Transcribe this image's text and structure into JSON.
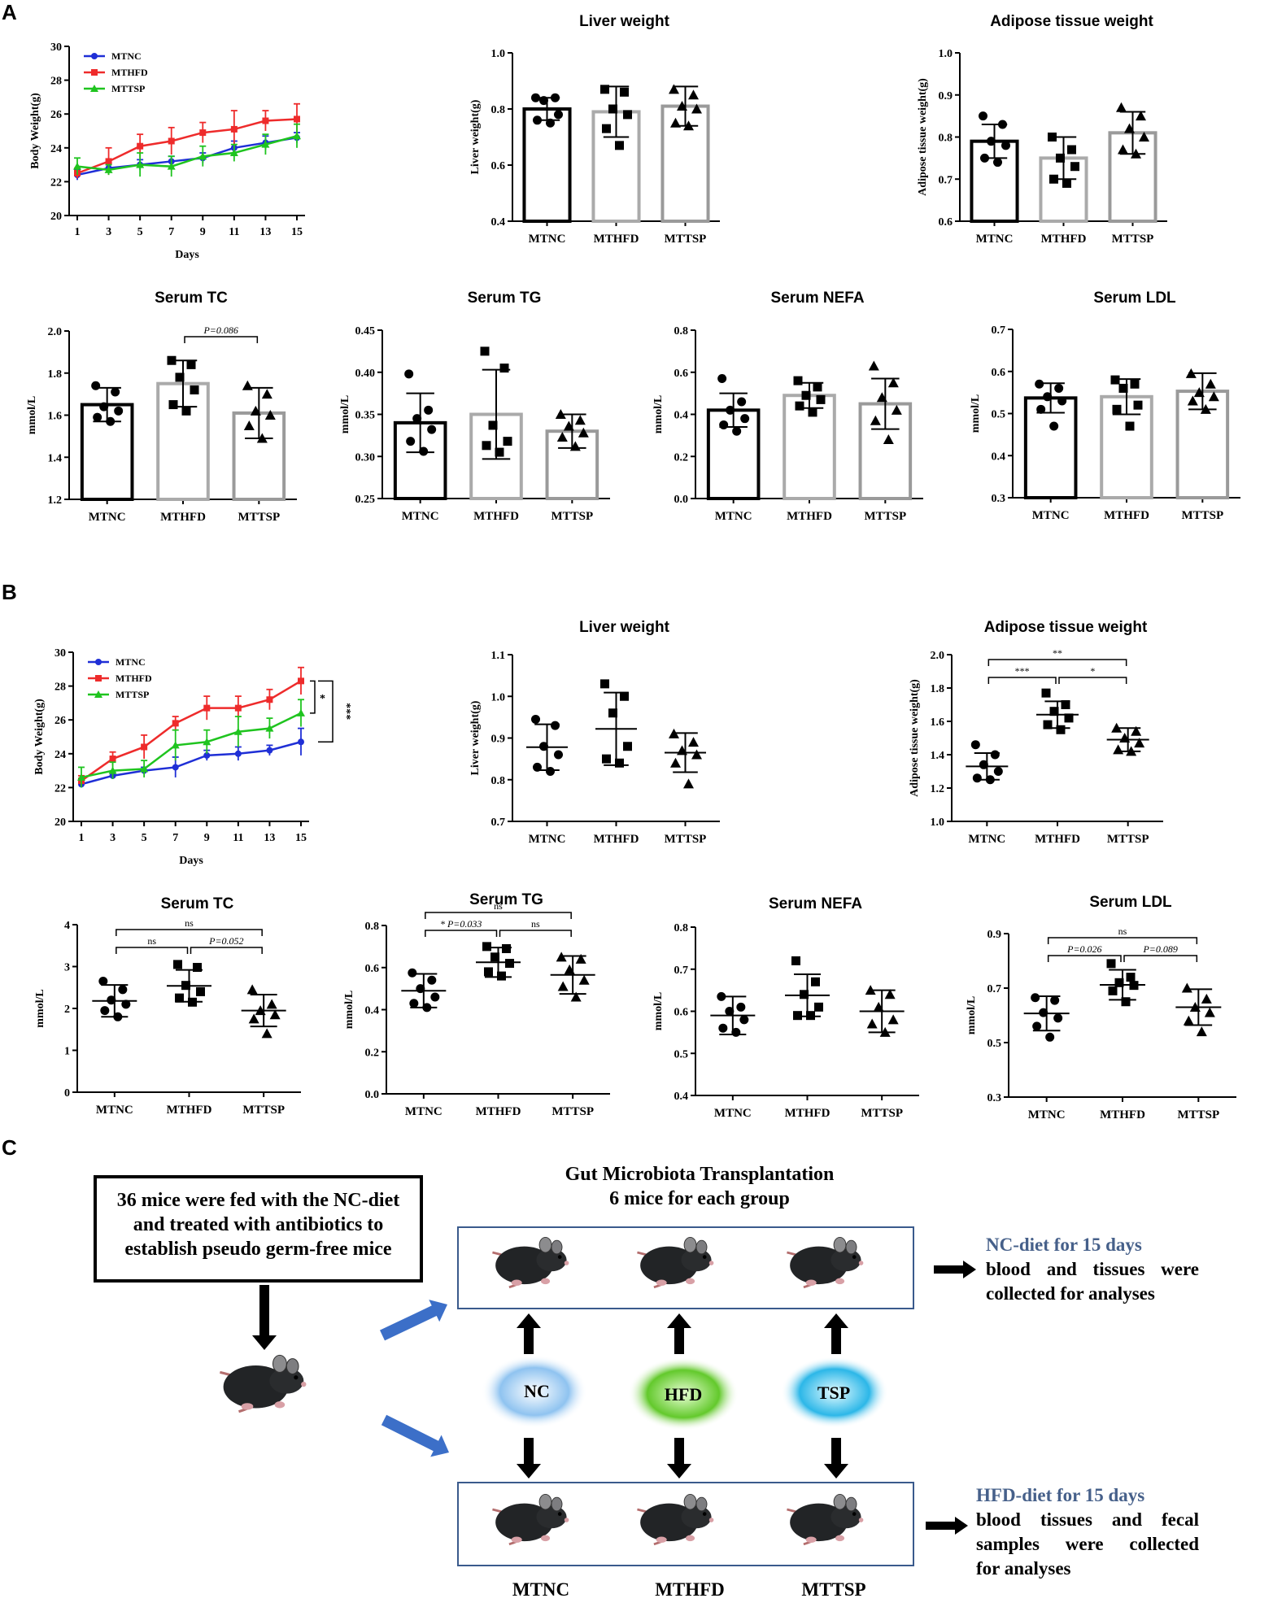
{
  "panels": {
    "a": "A",
    "b": "B",
    "c": "C"
  },
  "groups": [
    "MTNC",
    "MTHFD",
    "MTTSP"
  ],
  "colors": {
    "MTNC": "#1f2fd6",
    "MTHFD": "#ee2b2b",
    "MTTSP": "#1fc41f",
    "box_border": "#3a5a8c",
    "note_title": "#46608a",
    "arrow_blue": "#3c6fc8"
  },
  "chart_data": [
    {
      "id": "A_bw",
      "type": "line",
      "title": "",
      "xlabel": "Days",
      "ylabel": "Body Weight(g)",
      "x": [
        1,
        3,
        5,
        7,
        9,
        11,
        13,
        15
      ],
      "ylim": [
        20,
        30
      ],
      "yticks": [
        20,
        22,
        24,
        26,
        28,
        30
      ],
      "series": [
        {
          "name": "MTNC",
          "values": [
            22.4,
            22.8,
            23.0,
            23.2,
            23.4,
            24.0,
            24.3,
            24.6
          ],
          "err": [
            0.3,
            0.3,
            0.3,
            0.3,
            0.3,
            0.4,
            0.4,
            0.3
          ],
          "marker": "circle"
        },
        {
          "name": "MTHFD",
          "values": [
            22.5,
            23.2,
            24.1,
            24.4,
            24.9,
            25.1,
            25.6,
            25.7
          ],
          "err": [
            0.3,
            0.8,
            0.7,
            0.8,
            0.6,
            1.1,
            0.6,
            0.9
          ],
          "marker": "square"
        },
        {
          "name": "MTTSP",
          "values": [
            22.9,
            22.7,
            23.0,
            22.9,
            23.5,
            23.7,
            24.2,
            24.7
          ],
          "err": [
            0.5,
            0.3,
            0.7,
            0.6,
            0.6,
            0.5,
            0.6,
            0.7
          ],
          "marker": "triangle"
        }
      ]
    },
    {
      "id": "A_liver",
      "type": "bar",
      "title": "Liver weight",
      "ylabel": "Liver weight(g)",
      "categories": [
        "MTNC",
        "MTHFD",
        "MTTSP"
      ],
      "ylim": [
        0.4,
        1.0
      ],
      "yticks": [
        "0.4",
        "0.6",
        "0.8",
        "1.0"
      ],
      "means": [
        0.8,
        0.79,
        0.81
      ],
      "sd": [
        0.04,
        0.09,
        0.07
      ],
      "points": [
        [
          0.84,
          0.84,
          0.83,
          0.78,
          0.76,
          0.75
        ],
        [
          0.87,
          0.86,
          0.8,
          0.78,
          0.73,
          0.67
        ],
        [
          0.87,
          0.85,
          0.81,
          0.8,
          0.75,
          0.74
        ]
      ]
    },
    {
      "id": "A_adipose",
      "type": "bar",
      "title": "Adipose tissue weight",
      "ylabel": "Adipose tissue weight(g)",
      "categories": [
        "MTNC",
        "MTHFD",
        "MTTSP"
      ],
      "ylim": [
        0.6,
        1.0
      ],
      "yticks": [
        "0.6",
        "0.7",
        "0.8",
        "0.9",
        "1.0"
      ],
      "means": [
        0.79,
        0.75,
        0.81
      ],
      "sd": [
        0.04,
        0.05,
        0.05
      ],
      "points": [
        [
          0.85,
          0.83,
          0.79,
          0.78,
          0.75,
          0.74
        ],
        [
          0.8,
          0.77,
          0.75,
          0.73,
          0.7,
          0.69
        ],
        [
          0.87,
          0.85,
          0.82,
          0.8,
          0.77,
          0.76
        ]
      ]
    },
    {
      "id": "A_tc",
      "type": "bar",
      "title": "Serum TC",
      "ylabel": "mmol/L",
      "categories": [
        "MTNC",
        "MTHFD",
        "MTTSP"
      ],
      "ylim": [
        1.2,
        2.0
      ],
      "yticks": [
        "1.2",
        "1.4",
        "1.6",
        "1.8",
        "2.0"
      ],
      "means": [
        1.65,
        1.75,
        1.61
      ],
      "sd": [
        0.08,
        0.11,
        0.12
      ],
      "points": [
        [
          1.74,
          1.71,
          1.64,
          1.62,
          1.59,
          1.57
        ],
        [
          1.86,
          1.84,
          1.78,
          1.72,
          1.65,
          1.62
        ],
        [
          1.74,
          1.7,
          1.62,
          1.6,
          1.55,
          1.49
        ]
      ],
      "annotations": [
        {
          "from": 1,
          "to": 2,
          "text": "P=0.086"
        }
      ]
    },
    {
      "id": "A_tg",
      "type": "bar",
      "title": "Serum TG",
      "ylabel": "mmol/L",
      "categories": [
        "MTNC",
        "MTHFD",
        "MTTSP"
      ],
      "ylim": [
        0.25,
        0.45
      ],
      "yticks": [
        "0.25",
        "0.30",
        "0.35",
        "0.40",
        "0.45"
      ],
      "means": [
        0.34,
        0.35,
        0.33
      ],
      "sd": [
        0.035,
        0.053,
        0.02
      ],
      "points": [
        [
          0.398,
          0.355,
          0.345,
          0.332,
          0.318,
          0.306
        ],
        [
          0.425,
          0.405,
          0.337,
          0.318,
          0.313,
          0.305
        ],
        [
          0.35,
          0.343,
          0.336,
          0.328,
          0.323,
          0.312
        ]
      ]
    },
    {
      "id": "A_nefa",
      "type": "bar",
      "title": "Serum NEFA",
      "ylabel": "mmol/L",
      "categories": [
        "MTNC",
        "MTHFD",
        "MTTSP"
      ],
      "ylim": [
        0.0,
        0.8
      ],
      "yticks": [
        "0.0",
        "0.2",
        "0.4",
        "0.6",
        "0.8"
      ],
      "means": [
        0.42,
        0.49,
        0.45
      ],
      "sd": [
        0.08,
        0.06,
        0.12
      ],
      "points": [
        [
          0.57,
          0.46,
          0.42,
          0.38,
          0.35,
          0.32
        ],
        [
          0.56,
          0.53,
          0.49,
          0.47,
          0.44,
          0.41
        ],
        [
          0.63,
          0.55,
          0.48,
          0.42,
          0.37,
          0.28
        ]
      ]
    },
    {
      "id": "A_ldl",
      "type": "bar",
      "title": "Serum LDL",
      "ylabel": "mmol/L",
      "categories": [
        "MTNC",
        "MTHFD",
        "MTTSP"
      ],
      "ylim": [
        0.3,
        0.7
      ],
      "yticks": [
        "0.3",
        "0.4",
        "0.5",
        "0.6",
        "0.7"
      ],
      "means": [
        0.537,
        0.54,
        0.553
      ],
      "sd": [
        0.035,
        0.042,
        0.043
      ],
      "points": [
        [
          0.57,
          0.56,
          0.54,
          0.53,
          0.51,
          0.47
        ],
        [
          0.58,
          0.57,
          0.56,
          0.52,
          0.51,
          0.47
        ],
        [
          0.595,
          0.57,
          0.55,
          0.54,
          0.53,
          0.51
        ]
      ]
    },
    {
      "id": "B_bw",
      "type": "line",
      "title": "",
      "xlabel": "Days",
      "ylabel": "Body Weight(g)",
      "x": [
        1,
        3,
        5,
        7,
        9,
        11,
        13,
        15
      ],
      "ylim": [
        20,
        30
      ],
      "yticks": [
        20,
        22,
        24,
        26,
        28,
        30
      ],
      "series": [
        {
          "name": "MTNC",
          "values": [
            22.2,
            22.7,
            23.0,
            23.2,
            23.9,
            24.0,
            24.2,
            24.7
          ],
          "err": [
            0.2,
            0.2,
            0.2,
            0.6,
            0.3,
            0.4,
            0.3,
            0.8
          ],
          "marker": "circle"
        },
        {
          "name": "MTHFD",
          "values": [
            22.4,
            23.7,
            24.4,
            25.8,
            26.7,
            26.7,
            27.2,
            28.3
          ],
          "err": [
            0.3,
            0.4,
            0.7,
            0.4,
            0.7,
            0.7,
            0.6,
            0.8
          ],
          "marker": "square"
        },
        {
          "name": "MTTSP",
          "values": [
            22.6,
            23.0,
            23.1,
            24.5,
            24.7,
            25.3,
            25.5,
            26.4
          ],
          "err": [
            0.6,
            0.5,
            0.5,
            0.9,
            0.7,
            0.9,
            0.6,
            0.8
          ],
          "marker": "triangle"
        }
      ],
      "annotations": [
        "*",
        "***"
      ]
    },
    {
      "id": "B_liver",
      "type": "scatter",
      "title": "Liver weight",
      "ylabel": "Liver weight(g)",
      "categories": [
        "MTNC",
        "MTHFD",
        "MTTSP"
      ],
      "ylim": [
        0.7,
        1.1
      ],
      "yticks": [
        "0.7",
        "0.8",
        "0.9",
        "1.0",
        "1.1"
      ],
      "means": [
        0.878,
        0.922,
        0.865
      ],
      "sd": [
        0.055,
        0.087,
        0.047
      ],
      "points": [
        [
          0.945,
          0.93,
          0.88,
          0.86,
          0.83,
          0.82
        ],
        [
          1.03,
          1.0,
          0.96,
          0.88,
          0.85,
          0.84
        ],
        [
          0.91,
          0.89,
          0.87,
          0.86,
          0.84,
          0.79
        ]
      ]
    },
    {
      "id": "B_adipose",
      "type": "scatter",
      "title": "Adipose tissue weight",
      "ylabel": "Adipose tissue weight(g)",
      "categories": [
        "MTNC",
        "MTHFD",
        "MTTSP"
      ],
      "ylim": [
        1.0,
        2.0
      ],
      "yticks": [
        "1.0",
        "1.2",
        "1.4",
        "1.6",
        "1.8",
        "2.0"
      ],
      "means": [
        1.33,
        1.64,
        1.49
      ],
      "sd": [
        0.08,
        0.08,
        0.07
      ],
      "points": [
        [
          1.46,
          1.4,
          1.34,
          1.3,
          1.26,
          1.25
        ],
        [
          1.77,
          1.7,
          1.66,
          1.62,
          1.58,
          1.55
        ],
        [
          1.56,
          1.54,
          1.5,
          1.47,
          1.43,
          1.42
        ]
      ],
      "annotations": [
        {
          "from": 0,
          "to": 1,
          "text": "***",
          "level": 1
        },
        {
          "from": 1,
          "to": 2,
          "text": "*",
          "level": 1
        },
        {
          "from": 0,
          "to": 2,
          "text": "**",
          "level": 2
        }
      ]
    },
    {
      "id": "B_tc",
      "type": "scatter",
      "title": "Serum TC",
      "ylabel": "mmol/L",
      "categories": [
        "MTNC",
        "MTHFD",
        "MTTSP"
      ],
      "ylim": [
        0,
        4
      ],
      "yticks": [
        "0",
        "1",
        "2",
        "3",
        "4"
      ],
      "means": [
        2.18,
        2.54,
        1.95
      ],
      "sd": [
        0.38,
        0.38,
        0.38
      ],
      "points": [
        [
          2.65,
          2.45,
          2.2,
          2.1,
          1.95,
          1.8
        ],
        [
          3.05,
          2.98,
          2.55,
          2.4,
          2.25,
          2.15
        ],
        [
          2.45,
          2.1,
          1.95,
          1.85,
          1.75,
          1.4
        ]
      ],
      "annotations": [
        {
          "from": 0,
          "to": 1,
          "text": "ns",
          "level": 1
        },
        {
          "from": 1,
          "to": 2,
          "text": "P=0.052",
          "level": 1
        },
        {
          "from": 0,
          "to": 2,
          "text": "ns",
          "level": 2
        }
      ]
    },
    {
      "id": "B_tg",
      "type": "scatter",
      "title": "Serum TG",
      "ylabel": "mmol/L",
      "categories": [
        "MTNC",
        "MTHFD",
        "MTTSP"
      ],
      "ylim": [
        0.0,
        0.8
      ],
      "yticks": [
        "0.0",
        "0.2",
        "0.4",
        "0.6",
        "0.8"
      ],
      "means": [
        0.49,
        0.625,
        0.565
      ],
      "sd": [
        0.08,
        0.07,
        0.09
      ],
      "points": [
        [
          0.575,
          0.54,
          0.5,
          0.46,
          0.43,
          0.41
        ],
        [
          0.7,
          0.69,
          0.65,
          0.62,
          0.58,
          0.56
        ],
        [
          0.65,
          0.64,
          0.59,
          0.54,
          0.51,
          0.46
        ]
      ],
      "annotations": [
        {
          "from": 0,
          "to": 1,
          "text": "* P=0.033",
          "level": 1
        },
        {
          "from": 1,
          "to": 2,
          "text": "ns",
          "level": 1
        },
        {
          "from": 0,
          "to": 2,
          "text": "ns",
          "level": 2
        }
      ]
    },
    {
      "id": "B_nefa",
      "type": "scatter",
      "title": "Serum NEFA",
      "ylabel": "mmol/L",
      "categories": [
        "MTNC",
        "MTHFD",
        "MTTSP"
      ],
      "ylim": [
        0.4,
        0.8
      ],
      "yticks": [
        "0.4",
        "0.5",
        "0.6",
        "0.7",
        "0.8"
      ],
      "means": [
        0.59,
        0.638,
        0.6
      ],
      "sd": [
        0.045,
        0.05,
        0.05
      ],
      "points": [
        [
          0.635,
          0.61,
          0.6,
          0.58,
          0.56,
          0.55
        ],
        [
          0.72,
          0.67,
          0.64,
          0.61,
          0.59,
          0.59
        ],
        [
          0.65,
          0.64,
          0.61,
          0.58,
          0.57,
          0.55
        ]
      ]
    },
    {
      "id": "B_ldl",
      "type": "scatter",
      "title": "Serum LDL",
      "ylabel": "mmol/L",
      "categories": [
        "MTNC",
        "MTHFD",
        "MTTSP"
      ],
      "ylim": [
        0.3,
        0.9
      ],
      "yticks": [
        "0.3",
        "0.5",
        "0.7",
        "0.9"
      ],
      "means": [
        0.607,
        0.712,
        0.63
      ],
      "sd": [
        0.063,
        0.055,
        0.066
      ],
      "points": [
        [
          0.665,
          0.655,
          0.61,
          0.59,
          0.56,
          0.52
        ],
        [
          0.79,
          0.74,
          0.72,
          0.71,
          0.69,
          0.65
        ],
        [
          0.7,
          0.66,
          0.63,
          0.61,
          0.58,
          0.54
        ]
      ],
      "annotations": [
        {
          "from": 0,
          "to": 1,
          "text": "P=0.026",
          "level": 1
        },
        {
          "from": 1,
          "to": 2,
          "text": "P=0.089",
          "level": 1
        },
        {
          "from": 0,
          "to": 2,
          "text": "ns",
          "level": 2
        }
      ]
    }
  ],
  "panelC": {
    "left_box": [
      "36 mice were fed with the NC-diet",
      "and treated with antibiotics to",
      "establish pseudo germ-free mice"
    ],
    "title_line1": "Gut Microbiota Transplantation",
    "title_line2": "6 mice for each group",
    "blobs": [
      "NC",
      "HFD",
      "TSP"
    ],
    "top_note_title": "NC-diet for 15 days",
    "top_note_lines": [
      "blood and tissues were",
      "collected for analyses"
    ],
    "bottom_note_title": "HFD-diet for 15 days",
    "bottom_note_lines": [
      "blood tissues and fecal",
      "samples were collected",
      "for analyses"
    ],
    "group_labels": [
      "MTNC",
      "MTHFD",
      "MTTSP"
    ]
  }
}
